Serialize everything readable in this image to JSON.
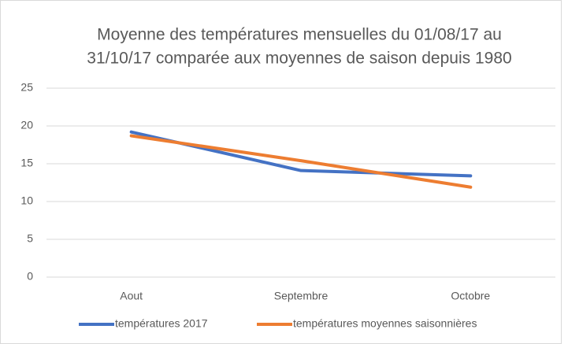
{
  "chart_data": {
    "type": "line",
    "title": [
      "Moyenne des températures mensuelles du 01/08/17 au",
      "31/10/17 comparée aux moyennes de saison depuis 1980"
    ],
    "categories": [
      "Aout",
      "Septembre",
      "Octobre"
    ],
    "series": [
      {
        "name": "températures 2017",
        "color": "#4472c4",
        "values": [
          19.2,
          14.1,
          13.4
        ]
      },
      {
        "name": "températures moyennes saisonnières",
        "color": "#ed7d31",
        "values": [
          18.7,
          15.4,
          11.9
        ]
      }
    ],
    "ylim": [
      0,
      25
    ],
    "yticks": [
      0,
      5,
      10,
      15,
      20,
      25
    ],
    "grid": true,
    "legend": "bottom"
  }
}
